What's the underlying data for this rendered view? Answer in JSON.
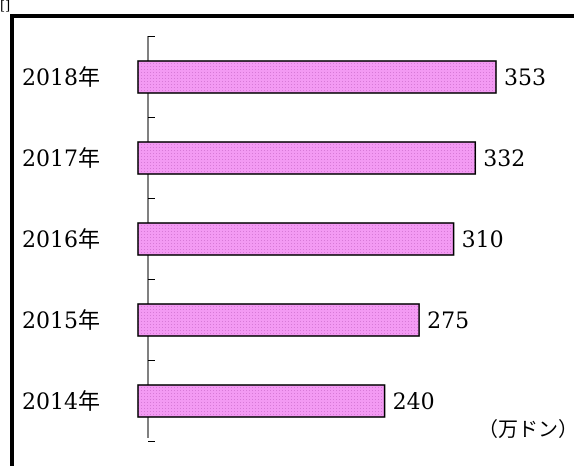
{
  "header_fragment": "[]",
  "chart_data": {
    "type": "bar",
    "orientation": "horizontal",
    "categories": [
      "2018年",
      "2017年",
      "2016年",
      "2015年",
      "2014年"
    ],
    "values": [
      353,
      332,
      310,
      275,
      240
    ],
    "unit": "（万ドン）",
    "title": "",
    "xlabel": "",
    "ylabel": "",
    "bar_color": "#f09ef0",
    "bar_border_color": "#000000",
    "grid": false
  }
}
